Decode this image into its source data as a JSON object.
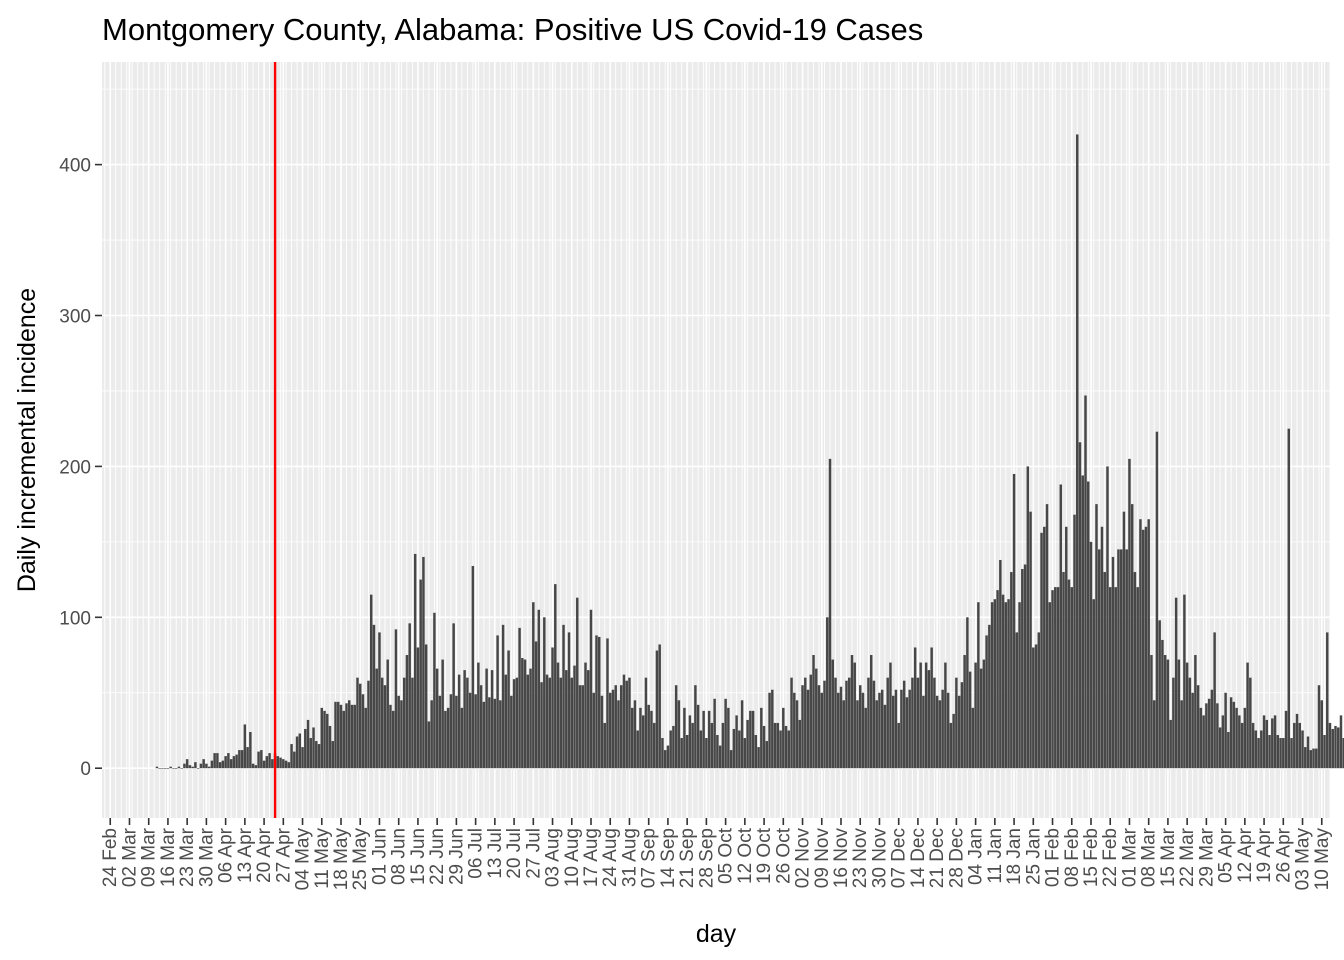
{
  "chart_data": {
    "type": "bar",
    "title": "Montgomery County, Alabama: Positive US Covid-19 Cases",
    "xlabel": "day",
    "ylabel": "Daily incremental incidence",
    "x_axis": "date",
    "xlim": [
      "2020-02-21",
      "2021-05-13"
    ],
    "ylim": [
      -33,
      468
    ],
    "y_ticks": [
      0,
      100,
      200,
      300,
      400
    ],
    "grid": true,
    "legend": "none",
    "reference_line": {
      "x": "2020-04-24",
      "color": "#ff0000"
    },
    "x_tick_labels": [
      "24 Feb",
      "02 Mar",
      "09 Mar",
      "16 Mar",
      "23 Mar",
      "30 Mar",
      "06 Apr",
      "13 Apr",
      "20 Apr",
      "27 Apr",
      "04 May",
      "11 May",
      "18 May",
      "25 May",
      "01 Jun",
      "08 Jun",
      "15 Jun",
      "22 Jun",
      "29 Jun",
      "06 Jul",
      "13 Jul",
      "20 Jul",
      "27 Jul",
      "03 Aug",
      "10 Aug",
      "17 Aug",
      "24 Aug",
      "31 Aug",
      "07 Sep",
      "14 Sep",
      "21 Sep",
      "28 Sep",
      "05 Oct",
      "12 Oct",
      "19 Oct",
      "26 Oct",
      "02 Nov",
      "09 Nov",
      "16 Nov",
      "23 Nov",
      "30 Nov",
      "07 Dec",
      "14 Dec",
      "21 Dec",
      "28 Dec",
      "04 Jan",
      "11 Jan",
      "18 Jan",
      "25 Jan",
      "01 Feb",
      "08 Feb",
      "15 Feb",
      "22 Feb",
      "01 Mar",
      "08 Mar",
      "15 Mar",
      "22 Mar",
      "29 Mar",
      "05 Apr",
      "12 Apr",
      "19 Apr",
      "26 Apr",
      "03 May",
      "10 May"
    ],
    "series": [
      {
        "start": "2020-03-12",
        "bar_color": "#474747",
        "values": [
          1,
          0,
          0,
          0,
          0,
          1,
          0,
          0,
          1,
          0,
          3,
          6,
          2,
          1,
          4,
          0,
          3,
          6,
          3,
          1,
          5,
          10,
          10,
          4,
          5,
          8,
          10,
          6,
          8,
          9,
          12,
          12,
          29,
          14,
          24,
          3,
          2,
          11,
          12,
          5,
          8,
          10,
          6,
          10,
          8,
          7,
          6,
          5,
          4,
          16,
          11,
          21,
          23,
          14,
          26,
          32,
          20,
          27,
          18,
          16,
          40,
          38,
          36,
          28,
          18,
          44,
          44,
          42,
          38,
          43,
          45,
          42,
          42,
          60,
          56,
          49,
          40,
          58,
          115,
          95,
          66,
          90,
          60,
          55,
          72,
          42,
          38,
          92,
          48,
          45,
          60,
          75,
          96,
          60,
          142,
          80,
          125,
          140,
          82,
          31,
          45,
          103,
          66,
          48,
          72,
          38,
          40,
          49,
          96,
          48,
          62,
          40,
          65,
          60,
          50,
          134,
          49,
          70,
          55,
          44,
          66,
          47,
          65,
          46,
          88,
          45,
          95,
          62,
          78,
          48,
          59,
          60,
          93,
          73,
          72,
          62,
          66,
          110,
          84,
          105,
          57,
          100,
          62,
          60,
          80,
          122,
          70,
          60,
          95,
          65,
          90,
          60,
          68,
          113,
          55,
          55,
          70,
          65,
          105,
          50,
          88,
          87,
          48,
          30,
          86,
          50,
          52,
          55,
          45,
          55,
          62,
          58,
          60,
          40,
          45,
          25,
          40,
          35,
          60,
          42,
          38,
          30,
          78,
          82,
          20,
          12,
          15,
          25,
          28,
          55,
          45,
          20,
          40,
          22,
          35,
          30,
          55,
          42,
          25,
          38,
          20,
          38,
          30,
          46,
          22,
          15,
          30,
          46,
          40,
          12,
          26,
          35,
          25,
          45,
          20,
          32,
          38,
          38,
          22,
          14,
          40,
          28,
          18,
          50,
          52,
          30,
          30,
          25,
          40,
          28,
          25,
          60,
          50,
          45,
          32,
          55,
          60,
          52,
          62,
          75,
          66,
          55,
          50,
          58,
          100,
          205,
          72,
          60,
          50,
          54,
          45,
          58,
          60,
          75,
          70,
          45,
          55,
          50,
          40,
          60,
          75,
          58,
          45,
          50,
          52,
          42,
          60,
          70,
          48,
          52,
          30,
          52,
          58,
          47,
          52,
          60,
          80,
          60,
          70,
          48,
          70,
          65,
          80,
          60,
          48,
          45,
          52,
          70,
          50,
          30,
          36,
          60,
          48,
          57,
          75,
          100,
          64,
          40,
          70,
          110,
          66,
          72,
          88,
          95,
          110,
          112,
          118,
          138,
          115,
          110,
          112,
          130,
          195,
          90,
          110,
          132,
          135,
          200,
          170,
          80,
          82,
          90,
          156,
          160,
          175,
          110,
          118,
          120,
          120,
          188,
          130,
          160,
          125,
          120,
          168,
          420,
          216,
          194,
          247,
          190,
          150,
          112,
          175,
          145,
          160,
          130,
          200,
          120,
          140,
          120,
          145,
          145,
          170,
          145,
          205,
          175,
          130,
          120,
          165,
          158,
          160,
          165,
          75,
          45,
          223,
          98,
          85,
          75,
          72,
          32,
          60,
          113,
          72,
          45,
          115,
          70,
          60,
          50,
          75,
          55,
          40,
          35,
          43,
          46,
          52,
          90,
          43,
          27,
          35,
          50,
          24,
          47,
          44,
          40,
          35,
          30,
          40,
          70,
          60,
          30,
          25,
          20,
          25,
          35,
          32,
          22,
          33,
          35,
          22,
          20,
          20,
          38,
          225,
          20,
          30,
          36,
          30,
          25,
          14,
          21,
          12,
          13,
          13,
          55,
          45,
          22,
          90,
          30,
          26,
          28,
          27,
          35,
          20,
          22,
          10,
          20,
          18,
          18,
          32,
          20,
          18,
          24,
          22,
          20,
          20,
          22,
          -12,
          22,
          16,
          20,
          18,
          20,
          25,
          8,
          10,
          15,
          10,
          20,
          12
        ]
      }
    ]
  }
}
